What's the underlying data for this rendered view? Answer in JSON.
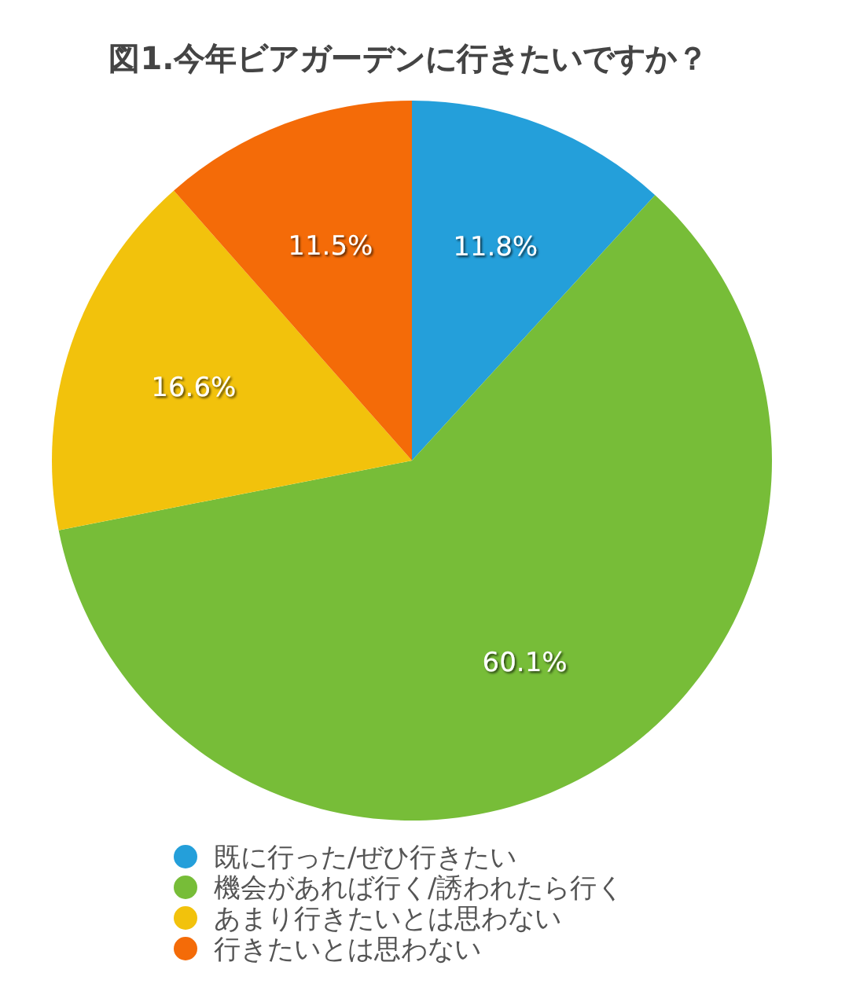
{
  "chart_data": {
    "type": "pie",
    "title": "図1.今年ビアガーデンに行きたいですか？",
    "categories": [
      "既に行った/ぜひ行きたい",
      "機会があれば行く/誘われたら行く",
      "あまり行きたいとは思わない",
      "行きたいとは思わない"
    ],
    "values": [
      11.8,
      60.1,
      16.6,
      11.5
    ],
    "colors": [
      "#249fda",
      "#77bd38",
      "#f2c20c",
      "#f46b08"
    ],
    "value_labels": [
      "11.8%",
      "60.1%",
      "16.6%",
      "11.5%"
    ],
    "legend": "bottom"
  }
}
